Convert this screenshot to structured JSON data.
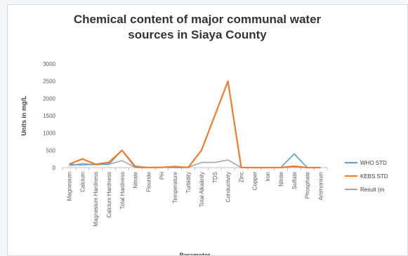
{
  "chart_data": {
    "type": "line",
    "title_lines": [
      "Chemical content of major communal water",
      "sources in Siaya County"
    ],
    "ylabel": "Units in mg/L",
    "xlabel": "Parameter",
    "ylim": [
      0,
      3000
    ],
    "yticks": [
      0,
      500,
      1000,
      1500,
      2000,
      2500,
      3000
    ],
    "grid": false,
    "legend_position": "right",
    "categories": [
      "Magnesium",
      "Calcium",
      "Magnesium Hardness",
      "Calcium Hardness",
      "Total Hardness",
      "Nitrate",
      "Flouride",
      "PH",
      "Temperature",
      "Turbidity",
      "Total Alkalinity",
      "TDS",
      "Conductivity",
      "Zinc",
      "Copper",
      "Iron",
      "Nitrite",
      "Sulfate",
      "Phosphate",
      "Ammonium"
    ],
    "series": [
      {
        "name": "WHO STD",
        "color": "#5b9bd5",
        "values": [
          100,
          75,
          100,
          100,
          500,
          45,
          1.5,
          8.5,
          0,
          5,
          500,
          1500,
          2500,
          5,
          1,
          0.3,
          3,
          400,
          0,
          0
        ]
      },
      {
        "name": "KEBS STD",
        "color": "#ed7d31",
        "values": [
          100,
          250,
          100,
          150,
          500,
          10,
          1.5,
          8.5,
          30,
          5,
          500,
          1500,
          2500,
          5,
          1,
          0.3,
          3,
          40,
          0,
          0
        ]
      },
      {
        "name": "Result (m",
        "color": "#a5a5a5",
        "values": [
          50,
          120,
          80,
          100,
          200,
          5,
          1,
          7,
          25,
          10,
          150,
          150,
          220,
          0,
          0,
          0.3,
          0,
          20,
          0,
          0
        ]
      }
    ]
  }
}
